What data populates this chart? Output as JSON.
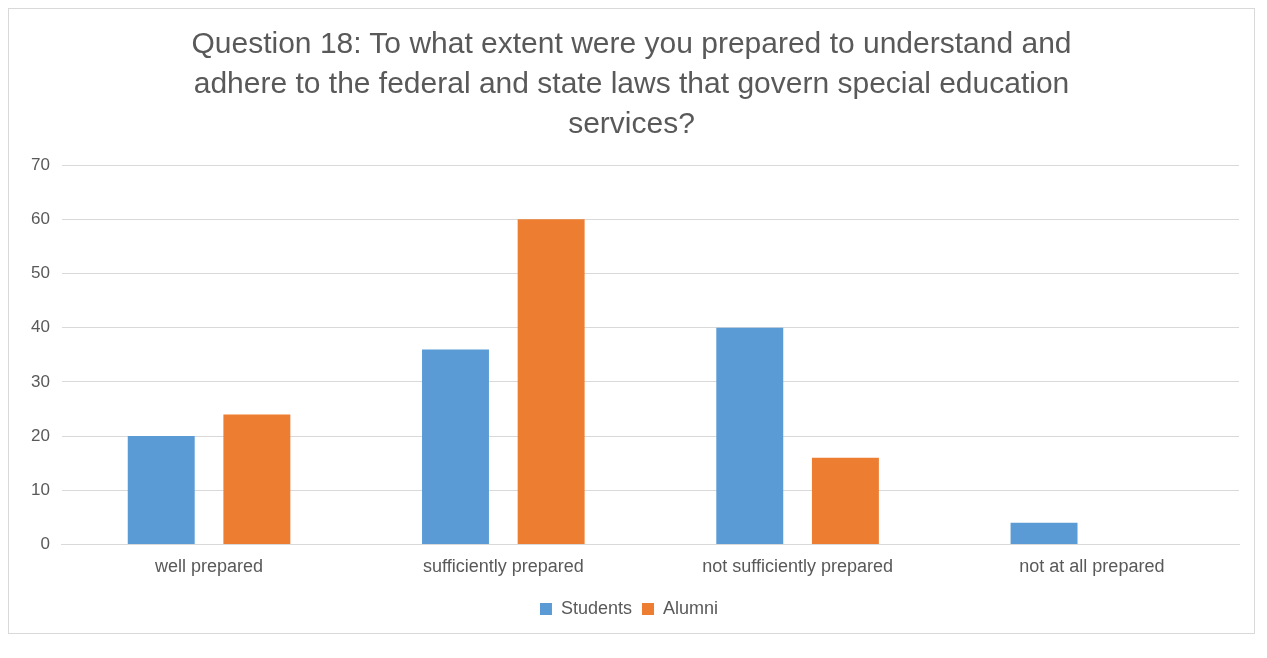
{
  "chart_data": {
    "type": "bar",
    "title": "Question 18: To what extent were you prepared to understand and adhere to the federal and state laws that govern special education services?",
    "categories": [
      "well prepared",
      "sufficiently prepared",
      "not sufficiently prepared",
      "not at all prepared"
    ],
    "series": [
      {
        "name": "Students",
        "color": "#5b9bd5",
        "values": [
          20,
          36,
          40,
          4
        ]
      },
      {
        "name": "Alumni",
        "color": "#ed7d31",
        "values": [
          24,
          60,
          16,
          0
        ]
      }
    ],
    "ylim": [
      0,
      70
    ],
    "yticks": [
      0,
      10,
      20,
      30,
      40,
      50,
      60,
      70
    ],
    "grid": "y",
    "legend": "bottom"
  }
}
